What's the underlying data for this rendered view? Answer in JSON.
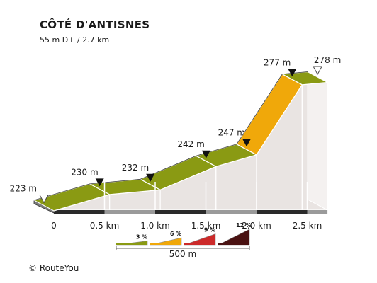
{
  "title": "CÔTÉ D'ANTISNES",
  "subtitle": "55 m D+ / 2.7 km",
  "copyright": "© RouteYou",
  "colors": {
    "grade_3": "#8a9a13",
    "grade_6": "#f0a80a",
    "grade_9": "#cc2a2a",
    "grade_12": "#4a1212",
    "side_face": "#e9e4e2",
    "ground": "#2a2a2a"
  },
  "chart_data": {
    "type": "area",
    "x_unit": "km",
    "y_unit": "m",
    "xlim": [
      0,
      2.7
    ],
    "points": [
      {
        "km": 0.0,
        "elev": 223,
        "label": "223 m",
        "marker": "open"
      },
      {
        "km": 0.55,
        "elev": 230,
        "label": "230 m",
        "marker": "filled"
      },
      {
        "km": 1.05,
        "elev": 232,
        "label": "232 m",
        "marker": "filled"
      },
      {
        "km": 1.6,
        "elev": 242,
        "label": "242 m",
        "marker": "filled"
      },
      {
        "km": 2.0,
        "elev": 247,
        "label": "247 m",
        "marker": "filled"
      },
      {
        "km": 2.45,
        "elev": 277,
        "label": "277 m",
        "marker": "filled"
      },
      {
        "km": 2.7,
        "elev": 278,
        "label": "278 m",
        "marker": "open"
      }
    ],
    "segment_grades": [
      "3",
      "3",
      "3",
      "3",
      "6",
      "3"
    ],
    "x_ticks": [
      {
        "km": 0,
        "label": "0"
      },
      {
        "km": 0.5,
        "label": "0.5 km"
      },
      {
        "km": 1.0,
        "label": "1.0 km"
      },
      {
        "km": 1.5,
        "label": "1.5 km"
      },
      {
        "km": 2.0,
        "label": "2.0 km"
      },
      {
        "km": 2.5,
        "label": "2.5 km"
      }
    ],
    "legend": {
      "grades": [
        {
          "label": "3 %",
          "key": "grade_3",
          "rise": 0.25
        },
        {
          "label": "6 %",
          "key": "grade_6",
          "rise": 0.45
        },
        {
          "label": "9 %",
          "key": "grade_9",
          "rise": 0.7
        },
        {
          "label": "12 %",
          "key": "grade_12",
          "rise": 1.0
        }
      ],
      "scale_label": "500 m"
    }
  }
}
